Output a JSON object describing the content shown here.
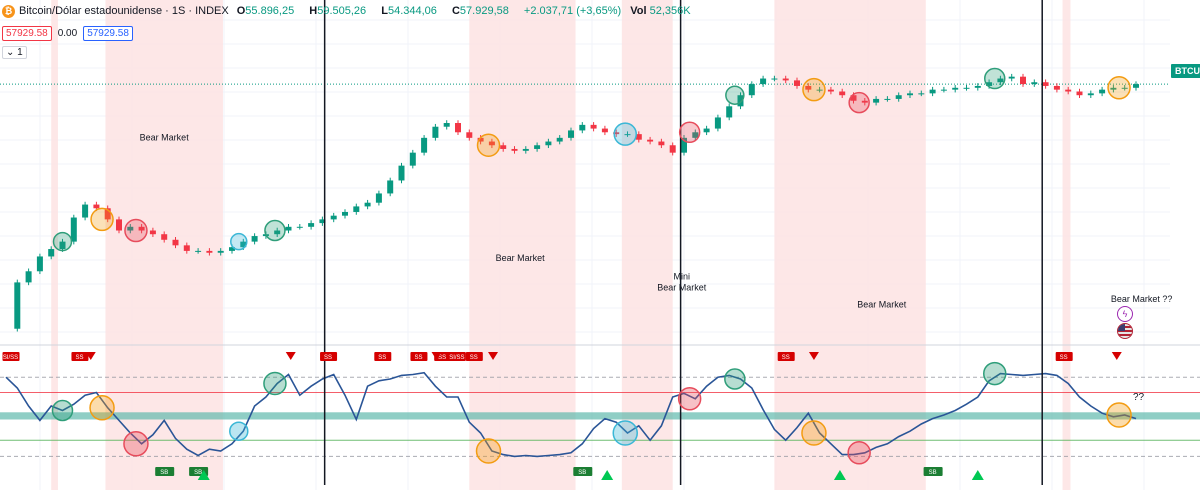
{
  "header": {
    "logo_glyph": "₿",
    "symbol": "Bitcoin/Dólar estadounidense · 1S · INDEX",
    "open_label": "O",
    "open": "55.896,25",
    "high_label": "H",
    "high": "59.505,26",
    "low_label": "L",
    "low": "54.344,06",
    "close_label": "C",
    "close": "57.929,58",
    "change": "+2.037,71 (+3,65%)",
    "vol_label": "Vol",
    "vol": "52,356K",
    "bid": "57929.58",
    "spread": "0.00",
    "ask": "57929.58",
    "quantity": "1"
  },
  "price_tag": {
    "label": "BTCUS",
    "color": "#089981"
  },
  "side_icons": [
    "flash-icon",
    "us-flag-icon"
  ],
  "colors": {
    "up": "#089981",
    "down": "#f23645",
    "bear_zone": "#fde3e3",
    "oscillator": "#2a5597",
    "band": "#5fb9ad",
    "circle_green": "#2f9e7a",
    "circle_orange": "#f39c12",
    "circle_red": "#e74c5c",
    "circle_blue": "#3bb7d6"
  },
  "chart_data": {
    "type": "line",
    "title": "Bitcoin/Dólar estadounidense · 1S · INDEX",
    "x_domain": [
      0,
      100
    ],
    "price_panel": {
      "x": [
        0,
        1,
        2,
        3,
        4,
        5,
        6,
        7,
        8,
        9,
        10,
        11,
        12,
        13,
        14,
        15,
        16,
        17,
        18,
        19,
        20,
        21,
        22,
        23,
        24,
        25,
        26,
        27,
        28,
        29,
        30,
        31,
        32,
        33,
        34,
        35,
        36,
        37,
        38,
        39,
        40,
        41,
        42,
        43,
        44,
        45,
        46,
        47,
        48,
        49,
        50,
        51,
        52,
        53,
        54,
        55,
        56,
        57,
        58,
        59,
        60,
        61,
        62,
        63,
        64,
        65,
        66,
        67,
        68,
        69,
        70,
        71,
        72,
        73,
        74,
        75,
        76,
        77,
        78,
        79,
        80,
        81,
        82,
        83,
        84,
        85,
        86,
        87,
        88,
        89,
        90,
        91,
        92,
        93,
        94,
        95,
        96,
        97,
        98,
        99,
        100
      ],
      "y": [
        5,
        30,
        36,
        44,
        48,
        52,
        65,
        72,
        70,
        64,
        58,
        60,
        58,
        56,
        53,
        50,
        47,
        47,
        46,
        47,
        49,
        52,
        55,
        56,
        58,
        60,
        60,
        62,
        64,
        66,
        68,
        71,
        73,
        78,
        85,
        93,
        100,
        108,
        114,
        116,
        111,
        108,
        106,
        104,
        102,
        101,
        102,
        104,
        106,
        108,
        112,
        115,
        113,
        111,
        110,
        110,
        107,
        106,
        104,
        100,
        108,
        111,
        113,
        119,
        125,
        131,
        137,
        140,
        140,
        139,
        136,
        134,
        134,
        133,
        131,
        128,
        127,
        129,
        129,
        131,
        132,
        132,
        134,
        134,
        135,
        135,
        136,
        138,
        140,
        141,
        137,
        138,
        136,
        134,
        133,
        131,
        132,
        134,
        135,
        135,
        137
      ],
      "yrange": [
        0,
        150
      ],
      "annotations": [
        "Bear Market",
        "Bear Market",
        "Mini Bear Market",
        "Bear Market",
        "Bear Market ??"
      ]
    },
    "oscillator_panel": {
      "x": [
        0,
        1,
        2,
        3,
        4,
        5,
        6,
        7,
        8,
        9,
        10,
        11,
        12,
        13,
        14,
        15,
        16,
        17,
        18,
        19,
        20,
        21,
        22,
        23,
        24,
        25,
        26,
        27,
        28,
        29,
        30,
        31,
        32,
        33,
        34,
        35,
        36,
        37,
        38,
        39,
        40,
        41,
        42,
        43,
        44,
        45,
        46,
        47,
        48,
        49,
        50,
        51,
        52,
        53,
        54,
        55,
        56,
        57,
        58,
        59,
        60,
        61,
        62,
        63,
        64,
        65,
        66,
        67,
        68,
        69,
        70,
        71,
        72,
        73,
        74,
        75,
        76,
        77,
        78,
        79,
        80,
        81,
        82,
        83,
        84,
        85,
        86,
        87,
        88,
        89,
        90,
        91,
        92,
        93,
        94,
        95,
        96,
        97,
        98,
        99,
        100
      ],
      "y": [
        92,
        80,
        60,
        44,
        60,
        55,
        62,
        72,
        75,
        58,
        44,
        30,
        18,
        28,
        44,
        24,
        12,
        5,
        12,
        10,
        18,
        32,
        60,
        70,
        85,
        95,
        72,
        82,
        90,
        95,
        72,
        45,
        82,
        88,
        90,
        94,
        95,
        97,
        82,
        70,
        70,
        42,
        30,
        10,
        6,
        4,
        5,
        4,
        5,
        6,
        8,
        18,
        35,
        46,
        42,
        30,
        38,
        22,
        38,
        70,
        74,
        68,
        82,
        92,
        94,
        90,
        80,
        56,
        34,
        22,
        36,
        52,
        30,
        18,
        6,
        6,
        8,
        14,
        18,
        26,
        32,
        40,
        46,
        50,
        55,
        62,
        70,
        88,
        96,
        95,
        94,
        95,
        96,
        94,
        85,
        70,
        60,
        52,
        48,
        50,
        46
      ],
      "yrange": [
        0,
        100
      ],
      "signals_top": [
        "SI/SS",
        "SS",
        "SS",
        "SS",
        "SS",
        "SS"
      ],
      "signals_bottom": [
        "SB",
        "SB",
        "SB"
      ],
      "annotation": "??"
    },
    "bear_zones_x": [
      [
        4,
        4.6
      ],
      [
        8.8,
        19.2
      ],
      [
        41,
        50.4
      ],
      [
        54.5,
        59
      ],
      [
        68,
        81.4
      ],
      [
        93.5,
        94.2
      ]
    ],
    "cycle_lines_x": [
      28.2,
      59.7,
      91.7
    ],
    "legend": "none"
  }
}
